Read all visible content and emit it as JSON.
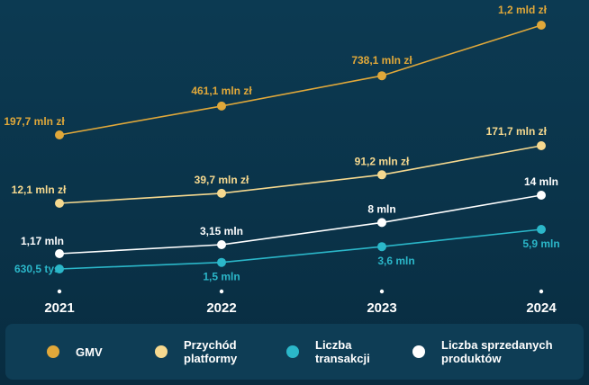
{
  "chart_data": {
    "type": "line",
    "categories": [
      "2021",
      "2022",
      "2023",
      "2024"
    ],
    "series": [
      {
        "name": "GMV",
        "unit": "mln zł",
        "color": "#e0a83a",
        "values": [
          197.7,
          461.1,
          738.1,
          1200
        ],
        "labels": [
          "197,7 mln zł",
          "461,1 mln zł",
          "738,1 mln zł",
          "1,2 mld zł"
        ]
      },
      {
        "name": "Przychód platformy",
        "unit": "mln zł",
        "color": "#f6d98f",
        "values": [
          12.1,
          39.7,
          91.2,
          171.7
        ],
        "labels": [
          "12,1 mln zł",
          "39,7 mln zł",
          "91,2 mln zł",
          "171,7 mln zł"
        ]
      },
      {
        "name": "Liczba sprzedanych produktów",
        "unit": "mln",
        "color": "#ffffff",
        "values": [
          1.17,
          3.15,
          8,
          14
        ],
        "labels": [
          "1,17 mln",
          "3,15 mln",
          "8 mln",
          "14 mln"
        ]
      },
      {
        "name": "Liczba transakcji",
        "unit": "mln",
        "color": "#2bb7c9",
        "values": [
          0.6305,
          1.5,
          3.6,
          5.9
        ],
        "labels": [
          "630,5 tys.",
          "1,5 mln",
          "3,6 mln",
          "5,9 mln"
        ]
      }
    ]
  },
  "legend": {
    "items": [
      {
        "key": "gmv",
        "label": "GMV",
        "color": "#e0a83a"
      },
      {
        "key": "revenue",
        "label": "Przychód platformy",
        "color": "#f6d98f"
      },
      {
        "key": "transactions",
        "label": "Liczba transakcji",
        "color": "#2bb7c9"
      },
      {
        "key": "products",
        "label": "Liczba sprzedanych produktów",
        "color": "#ffffff"
      }
    ]
  }
}
